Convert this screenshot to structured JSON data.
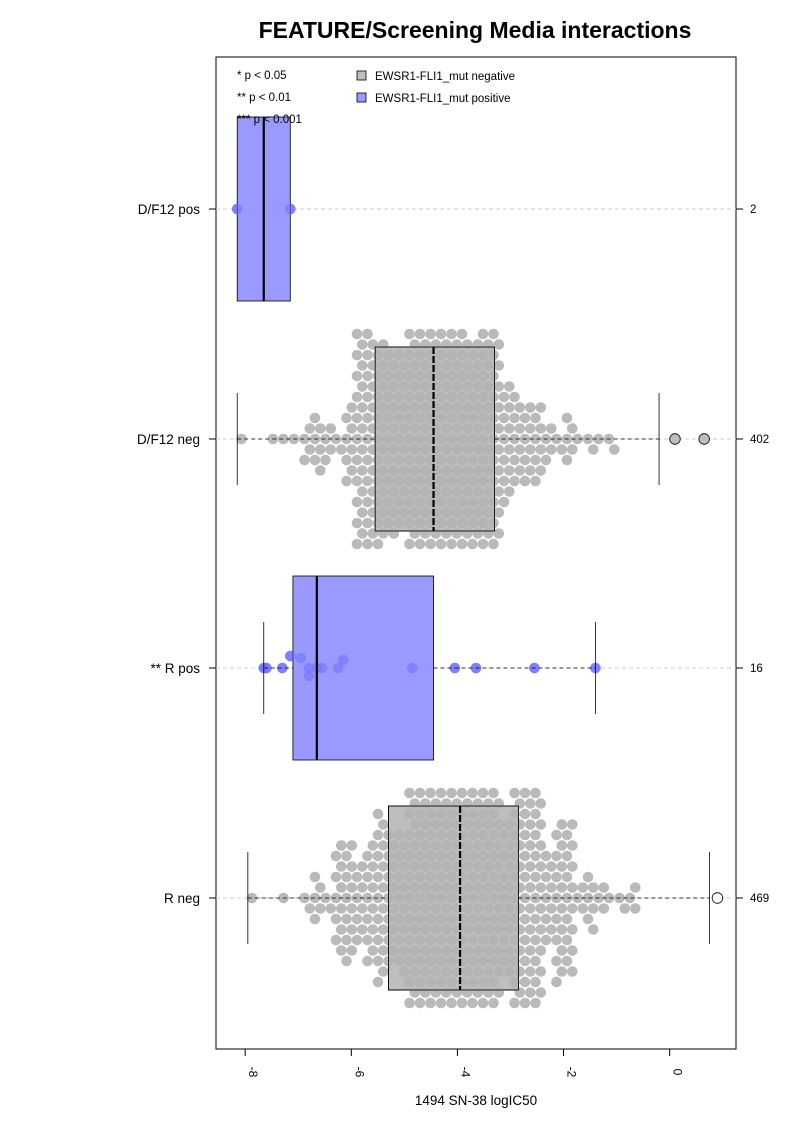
{
  "chart_data": {
    "type": "boxplot-beeswarm",
    "title": "FEATURE/Screening Media interactions",
    "xlabel": "1494 SN-38 logIC50",
    "xlim": [
      -8.55,
      1.25
    ],
    "x_ticks": [
      -8,
      -6,
      -4,
      -2,
      0
    ],
    "significance_legend": [
      "* p < 0.05",
      "** p < 0.01",
      "*** p < 0.001"
    ],
    "legend": [
      {
        "label": "EWSR1-FLI1_mut negative",
        "color": "#bebebe"
      },
      {
        "label": "EWSR1-FLI1_mut positive",
        "color": "#9999ff"
      }
    ],
    "groups": [
      {
        "label": "D/F12 pos",
        "n": "2",
        "mutation": "positive",
        "q1": -8.15,
        "median": -7.65,
        "q3": -7.15,
        "whisker_low": -8.15,
        "whisker_high": -7.15,
        "points": [
          -8.15,
          -7.15
        ],
        "outliers_open": []
      },
      {
        "label": "D/F12 neg",
        "n": "402",
        "mutation": "negative",
        "q1": -5.55,
        "median": -4.45,
        "q3": -3.3,
        "whisker_low": -8.15,
        "whisker_high": -0.2,
        "points": [],
        "outliers_open": [
          0.1,
          0.65
        ]
      },
      {
        "label": "** R pos",
        "n": "16",
        "mutation": "positive",
        "q1": -7.1,
        "median": -6.65,
        "q3": -4.45,
        "whisker_low": -7.65,
        "whisker_high": -1.4,
        "points": [
          -7.65,
          -7.3,
          -7.15,
          -6.95,
          -6.8,
          -6.65,
          -6.8,
          -6.55,
          -6.25,
          -6.15,
          -4.85,
          -4.05,
          -3.65,
          -2.55,
          -1.4,
          -7.6
        ],
        "outliers_open": []
      },
      {
        "label": "R neg",
        "n": "469",
        "mutation": "negative",
        "q1": -5.3,
        "median": -3.95,
        "q3": -2.85,
        "whisker_low": -7.95,
        "whisker_high": 0.75,
        "points": [],
        "outliers_open": [
          0.9
        ]
      }
    ]
  },
  "colors": {
    "negative_fill": "#bebebe",
    "negative_point": "#b3b3b3",
    "positive_fill": "#9999ff",
    "positive_point": "#7070ff",
    "grid": "#cccccc"
  }
}
